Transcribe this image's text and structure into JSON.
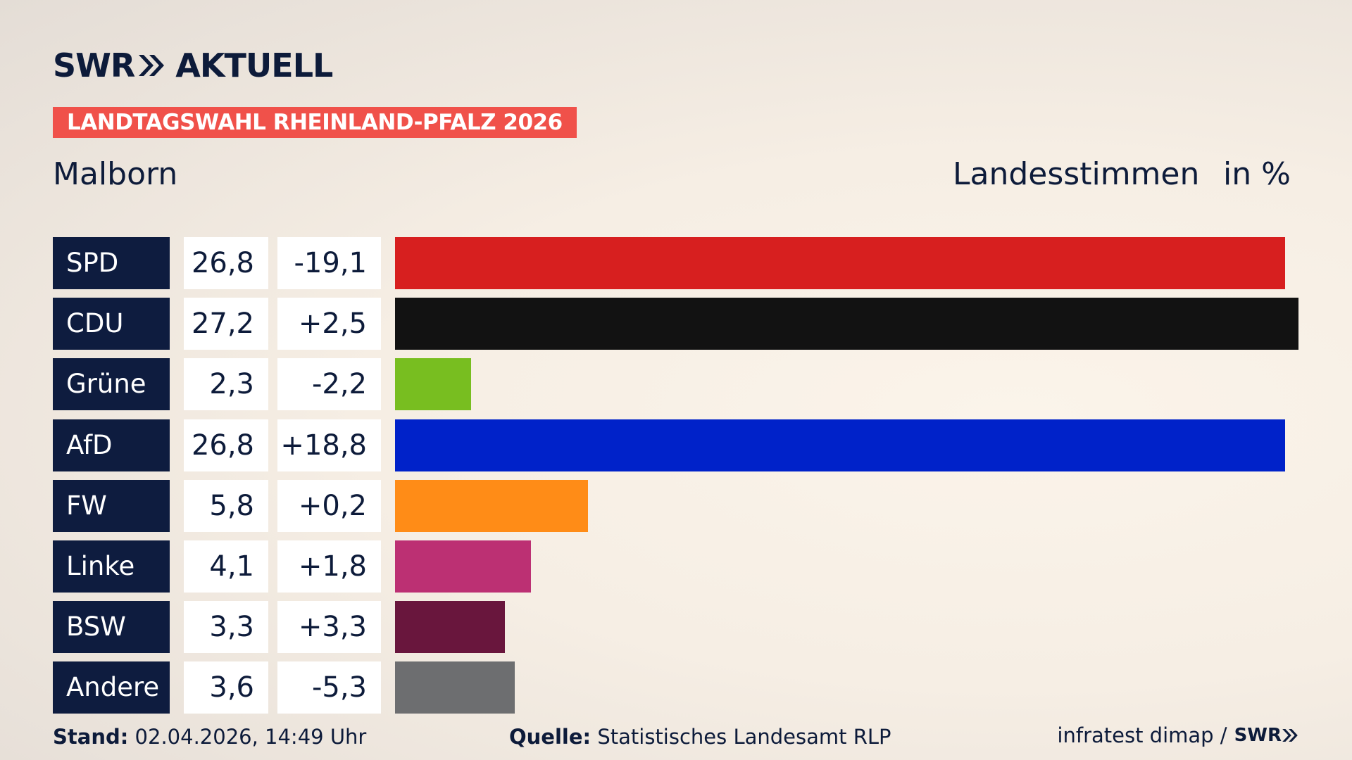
{
  "brand": {
    "name_part1": "SWR",
    "name_part2": "AKTUELL"
  },
  "banner": "LANDTAGSWAHL RHEINLAND-PFALZ 2026",
  "place": "Malborn",
  "measure": "Landesstimmen",
  "unit": "in %",
  "chart_data": {
    "type": "bar",
    "orientation": "horizontal",
    "categories": [
      "SPD",
      "CDU",
      "Grüne",
      "AfD",
      "FW",
      "Linke",
      "BSW",
      "Andere"
    ],
    "values": [
      26.8,
      27.2,
      2.3,
      26.8,
      5.8,
      4.1,
      3.3,
      3.6
    ],
    "value_labels": [
      "26,8",
      "27,2",
      "2,3",
      "26,8",
      "5,8",
      "4,1",
      "3,3",
      "3,6"
    ],
    "changes": [
      "-19,1",
      "+2,5",
      "-2,2",
      "+18,8",
      "+0,2",
      "+1,8",
      "+3,3",
      "-5,3"
    ],
    "colors": [
      "#d71f1f",
      "#121212",
      "#78be20",
      "#0022c9",
      "#ff8c17",
      "#bc3073",
      "#69163d",
      "#6d6e70"
    ]
  },
  "footer": {
    "stand_label": "Stand:",
    "stand_value": "02.04.2026, 14:49 Uhr",
    "source_label": "Quelle:",
    "source_value": "Statistisches Landesamt RLP",
    "credit": "infratest dimap /",
    "credit_logo": "SWR"
  }
}
